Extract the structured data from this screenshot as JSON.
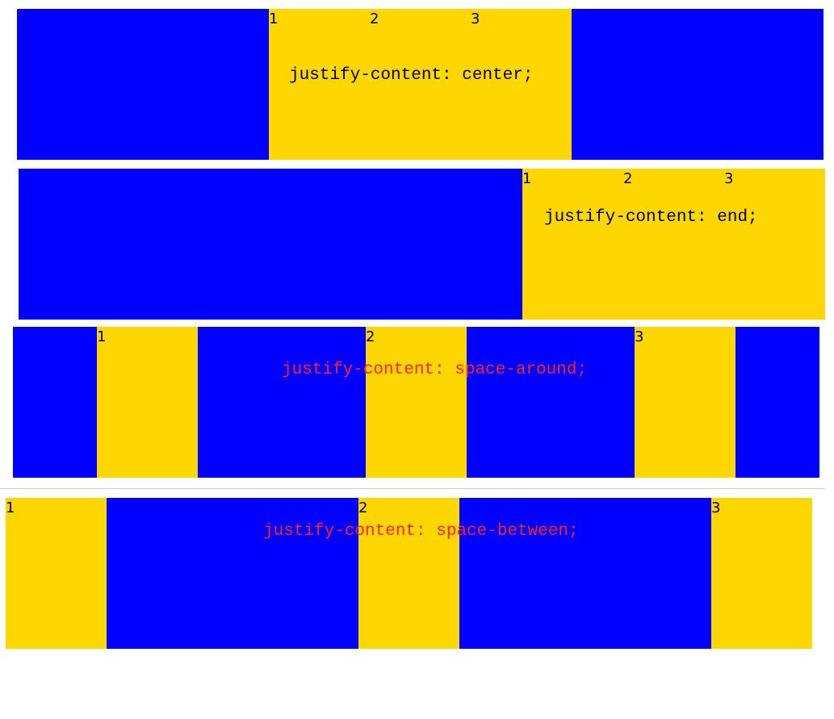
{
  "sections": [
    {
      "label": "justify-content: center;",
      "items": [
        "1",
        "2",
        "3"
      ]
    },
    {
      "label": "justify-content: end;",
      "items": [
        "1",
        "2",
        "3"
      ]
    },
    {
      "label": "justify-content: space-around;",
      "items": [
        "1",
        "2",
        "3"
      ]
    },
    {
      "label": "justify-content: space-between;",
      "items": [
        "1",
        "2",
        "3"
      ]
    }
  ]
}
